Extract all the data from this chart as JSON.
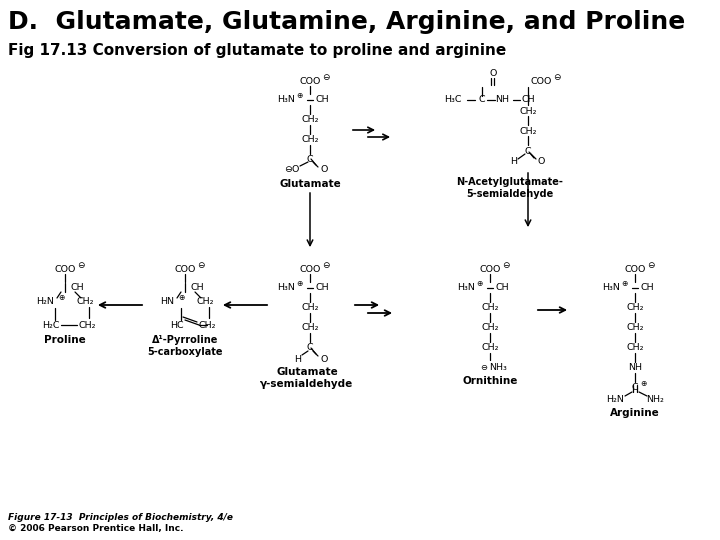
{
  "title": "D.  Glutamate, Glutamine, Arginine, and Proline",
  "subtitle": "Fig 17.13 Conversion of glutamate to proline and arginine",
  "footer_line1": "Figure 17-13  Principles of Biochemistry, 4/e",
  "footer_line2": "© 2006 Pearson Prentice Hall, Inc.",
  "bg_color": "#ffffff",
  "title_fontsize": 18,
  "subtitle_fontsize": 11,
  "footer_fontsize": 6.5
}
